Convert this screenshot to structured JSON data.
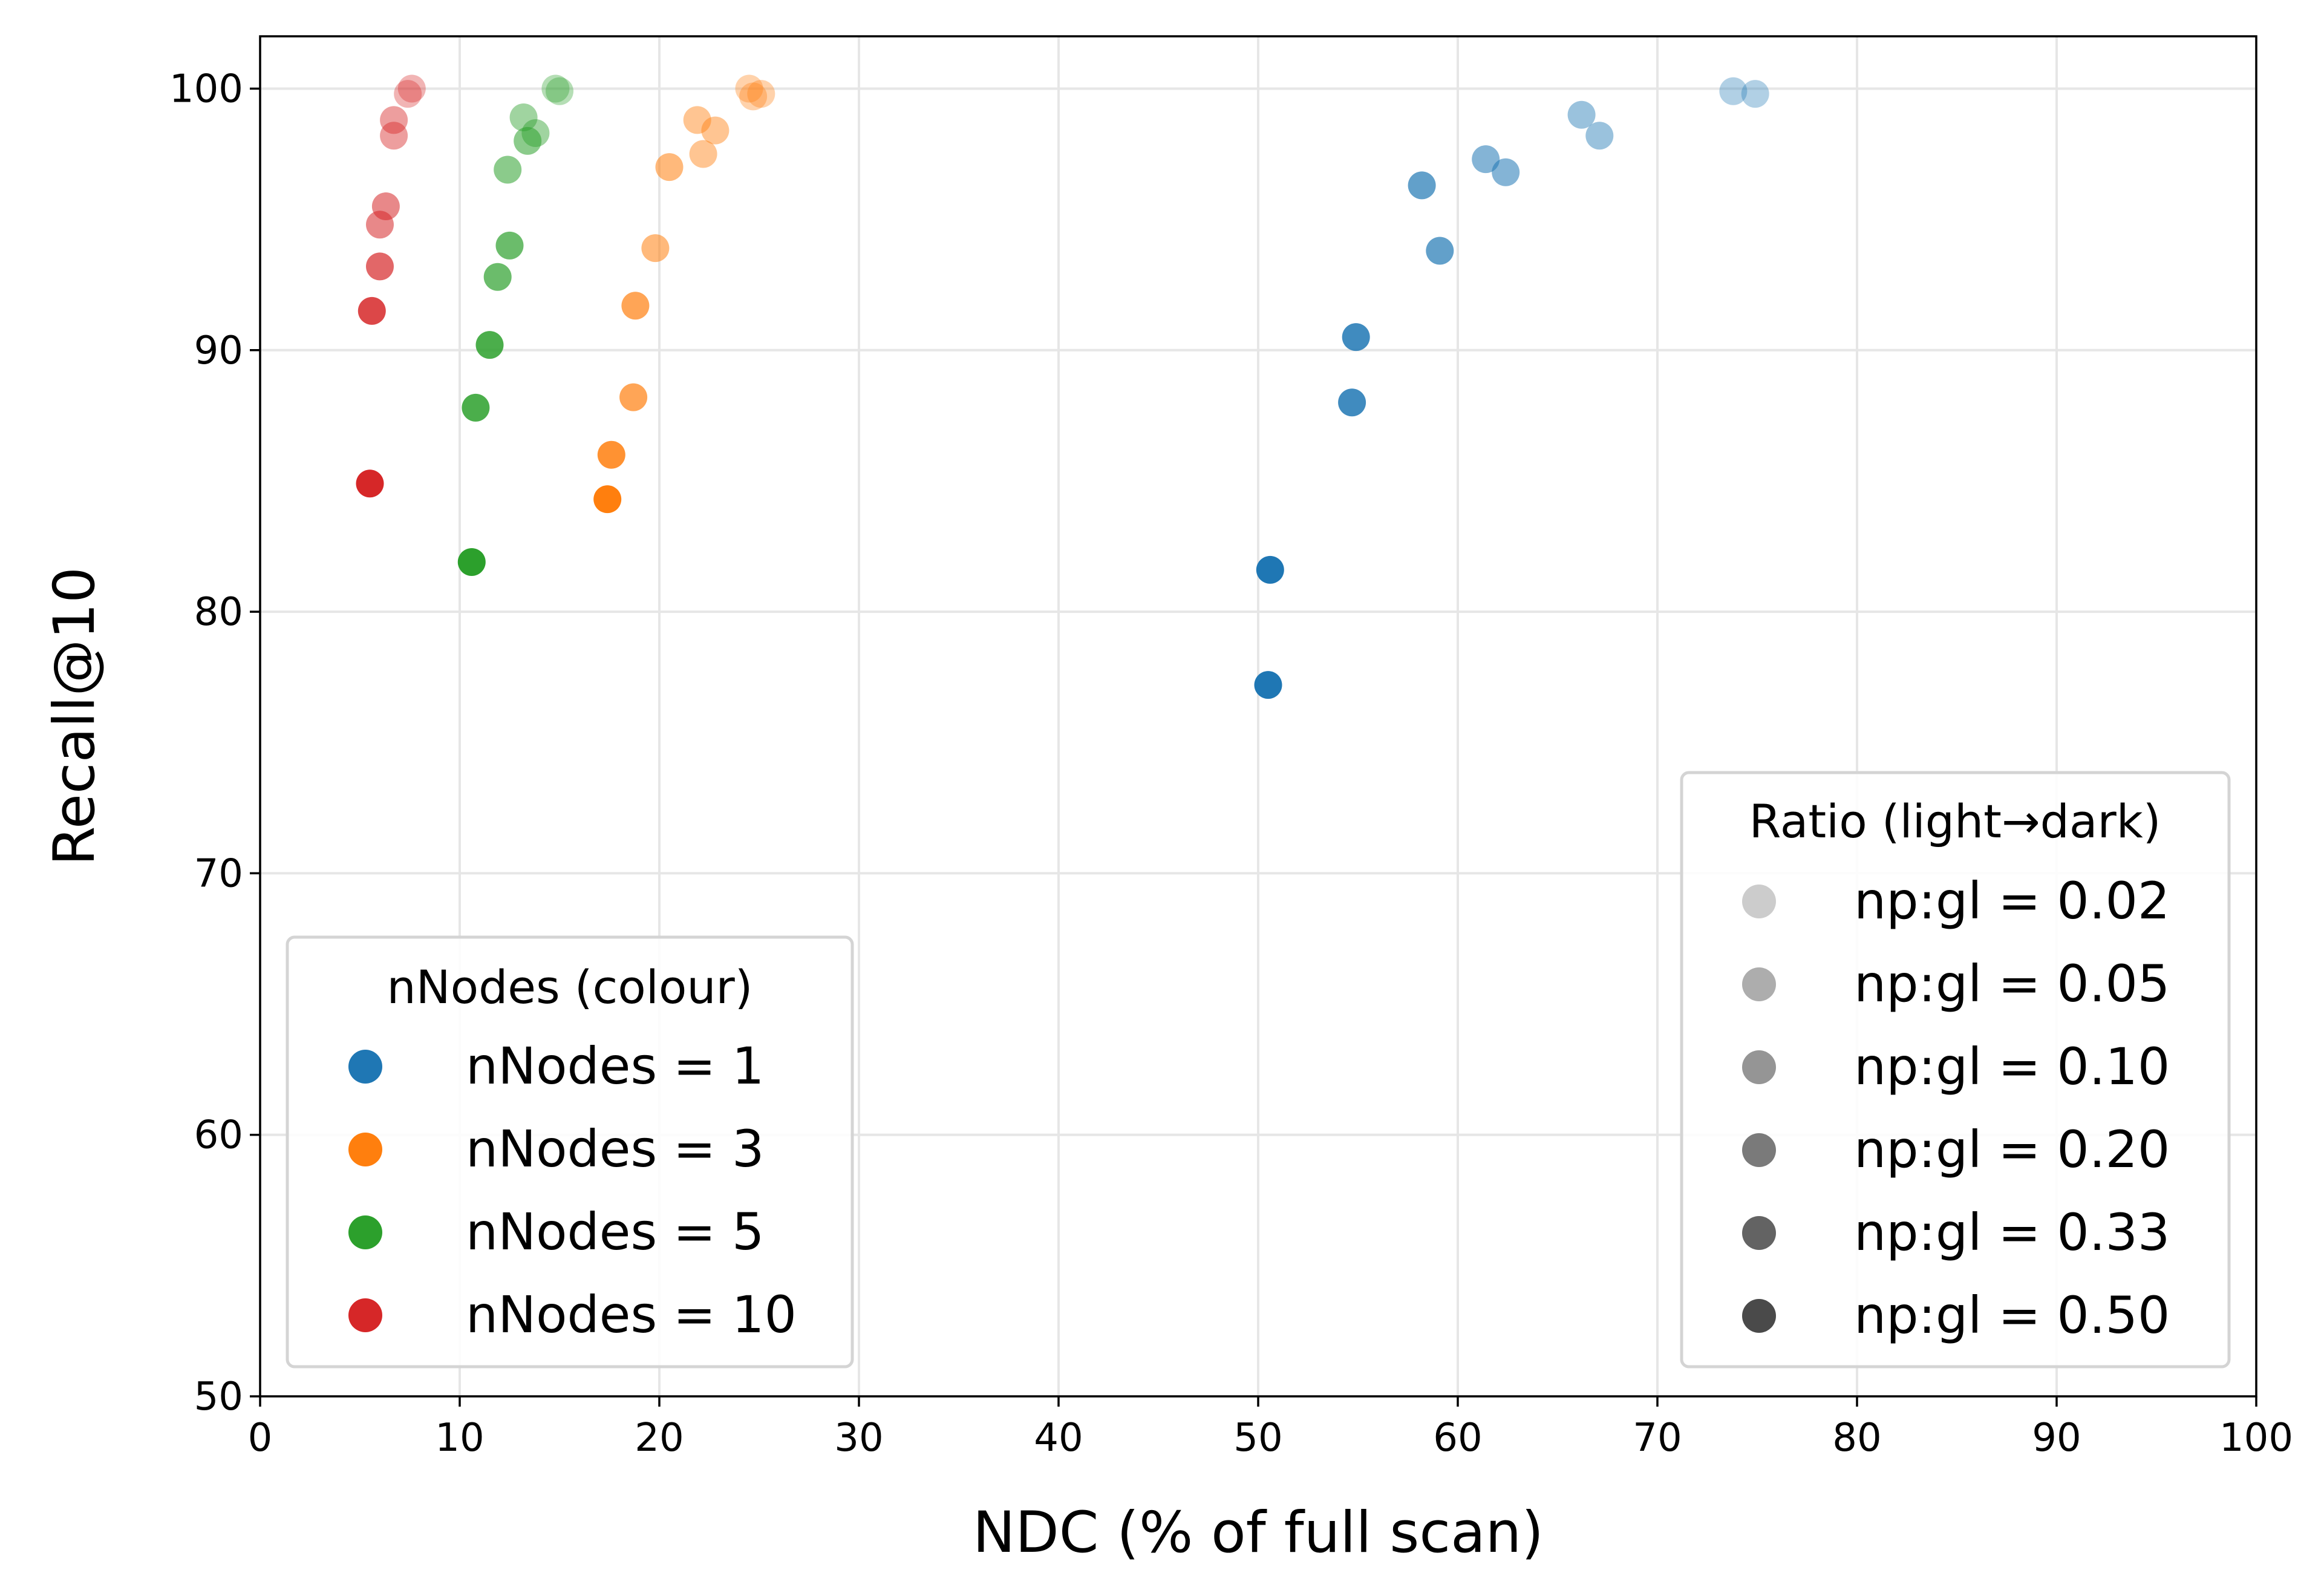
{
  "chart_data": {
    "type": "scatter",
    "title": "",
    "xlabel": "NDC (% of full scan)",
    "ylabel": "Recall@10",
    "xlim": [
      0,
      100
    ],
    "ylim": [
      50,
      102
    ],
    "xticks": [
      0,
      10,
      20,
      30,
      40,
      50,
      60,
      70,
      80,
      90,
      100
    ],
    "xtick_labels": [
      "0",
      "10",
      "20",
      "30",
      "40",
      "50",
      "60",
      "70",
      "80",
      "90",
      "100"
    ],
    "yticks": [
      50,
      60,
      70,
      80,
      90,
      100
    ],
    "ytick_labels": [
      "50",
      "60",
      "70",
      "80",
      "90",
      "100"
    ],
    "grid": true,
    "ratio_alpha": [
      0.35,
      0.45,
      0.55,
      0.7,
      0.85,
      1.0
    ],
    "series": [
      {
        "name": "nNodes = 1",
        "color": "#1f77b4",
        "points": [
          {
            "x": 73.8,
            "y": 99.9,
            "r": 0
          },
          {
            "x": 74.9,
            "y": 99.8,
            "r": 0
          },
          {
            "x": 66.2,
            "y": 99.0,
            "r": 1
          },
          {
            "x": 67.1,
            "y": 98.2,
            "r": 1
          },
          {
            "x": 61.4,
            "y": 97.3,
            "r": 2
          },
          {
            "x": 62.4,
            "y": 96.8,
            "r": 2
          },
          {
            "x": 58.2,
            "y": 96.3,
            "r": 3
          },
          {
            "x": 59.1,
            "y": 93.8,
            "r": 3
          },
          {
            "x": 54.9,
            "y": 90.5,
            "r": 4
          },
          {
            "x": 54.7,
            "y": 88.0,
            "r": 4
          },
          {
            "x": 50.6,
            "y": 81.6,
            "r": 5
          },
          {
            "x": 50.5,
            "y": 77.2,
            "r": 5
          }
        ]
      },
      {
        "name": "nNodes = 3",
        "color": "#ff7f0e",
        "points": [
          {
            "x": 24.5,
            "y": 100.0,
            "r": 0
          },
          {
            "x": 25.1,
            "y": 99.8,
            "r": 0
          },
          {
            "x": 24.7,
            "y": 99.7,
            "r": 0
          },
          {
            "x": 21.9,
            "y": 98.8,
            "r": 1
          },
          {
            "x": 22.8,
            "y": 98.4,
            "r": 1
          },
          {
            "x": 22.2,
            "y": 97.5,
            "r": 1
          },
          {
            "x": 20.5,
            "y": 97.0,
            "r": 2
          },
          {
            "x": 19.8,
            "y": 93.9,
            "r": 2
          },
          {
            "x": 18.8,
            "y": 91.7,
            "r": 3
          },
          {
            "x": 18.7,
            "y": 88.2,
            "r": 3
          },
          {
            "x": 17.6,
            "y": 86.0,
            "r": 4
          },
          {
            "x": 17.4,
            "y": 84.3,
            "r": 5
          }
        ]
      },
      {
        "name": "nNodes = 5",
        "color": "#2ca02c",
        "points": [
          {
            "x": 14.8,
            "y": 100.0,
            "r": 0
          },
          {
            "x": 15.0,
            "y": 99.9,
            "r": 0
          },
          {
            "x": 13.2,
            "y": 98.9,
            "r": 1
          },
          {
            "x": 13.8,
            "y": 98.3,
            "r": 1
          },
          {
            "x": 13.4,
            "y": 98.0,
            "r": 2
          },
          {
            "x": 12.4,
            "y": 96.9,
            "r": 2
          },
          {
            "x": 12.5,
            "y": 94.0,
            "r": 3
          },
          {
            "x": 11.9,
            "y": 92.8,
            "r": 3
          },
          {
            "x": 11.5,
            "y": 90.2,
            "r": 4
          },
          {
            "x": 10.8,
            "y": 87.8,
            "r": 4
          },
          {
            "x": 10.6,
            "y": 81.9,
            "r": 5
          }
        ]
      },
      {
        "name": "nNodes = 10",
        "color": "#d62728",
        "points": [
          {
            "x": 7.6,
            "y": 100.0,
            "r": 0
          },
          {
            "x": 7.4,
            "y": 99.8,
            "r": 0
          },
          {
            "x": 6.7,
            "y": 98.8,
            "r": 1
          },
          {
            "x": 6.7,
            "y": 98.2,
            "r": 1
          },
          {
            "x": 6.3,
            "y": 95.5,
            "r": 2
          },
          {
            "x": 6.0,
            "y": 94.8,
            "r": 2
          },
          {
            "x": 6.0,
            "y": 93.2,
            "r": 3
          },
          {
            "x": 5.6,
            "y": 91.5,
            "r": 4
          },
          {
            "x": 5.5,
            "y": 84.9,
            "r": 5
          }
        ]
      }
    ],
    "legend_nodes": {
      "title": "nNodes (colour)",
      "position": "lower-left",
      "entries": [
        {
          "label": "nNodes = 1",
          "color": "#1f77b4"
        },
        {
          "label": "nNodes = 3",
          "color": "#ff7f0e"
        },
        {
          "label": "nNodes = 5",
          "color": "#2ca02c"
        },
        {
          "label": "nNodes = 10",
          "color": "#d62728"
        }
      ]
    },
    "legend_ratio": {
      "title": "Ratio (light→dark)",
      "position": "lower-right",
      "entries": [
        {
          "label": "np:gl = 0.02",
          "color": "#cccccc"
        },
        {
          "label": "np:gl = 0.05",
          "color": "#adadad"
        },
        {
          "label": "np:gl = 0.10",
          "color": "#959595"
        },
        {
          "label": "np:gl = 0.20",
          "color": "#7a7a7a"
        },
        {
          "label": "np:gl = 0.33",
          "color": "#636363"
        },
        {
          "label": "np:gl = 0.50",
          "color": "#4a4a4a"
        }
      ]
    }
  }
}
